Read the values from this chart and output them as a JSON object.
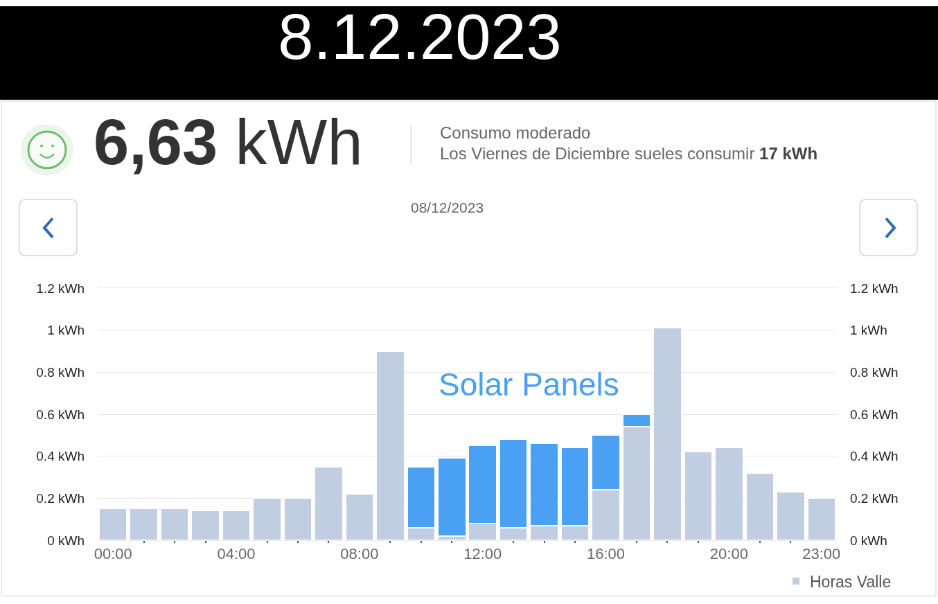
{
  "chart_data": {
    "type": "bar",
    "title": "8.12.2023",
    "annotations": [
      "6,63 kWh",
      "Consumo moderado",
      "Los Viernes de Diciembre sueles consumir 17 kWh",
      "08/12/2023"
    ],
    "categories": [
      "00:00",
      null,
      null,
      null,
      "04:00",
      null,
      null,
      null,
      "08:00",
      null,
      null,
      null,
      "12:00",
      null,
      null,
      null,
      "16:00",
      null,
      null,
      null,
      "20:00",
      null,
      null,
      "23:00"
    ],
    "series": [
      {
        "name": "Horas Valle",
        "color": "#c1cde0",
        "values": [
          0.15,
          0.15,
          0.15,
          0.14,
          0.14,
          0.2,
          0.2,
          0.35,
          0.22,
          0.9,
          0.06,
          0.02,
          0.08,
          0.06,
          0.07,
          0.07,
          0.24,
          0.54,
          1.01,
          0.42,
          0.44,
          0.32,
          0.23,
          0.2
        ]
      },
      {
        "name": "Solar Panels",
        "color": "#4aa0f3",
        "values": [
          null,
          null,
          null,
          null,
          null,
          null,
          null,
          null,
          null,
          null,
          0.29,
          0.37,
          0.37,
          0.42,
          0.39,
          0.37,
          0.26,
          0.06,
          null,
          null,
          null,
          null,
          null,
          null
        ]
      }
    ],
    "stacked": true,
    "ylim": [
      0,
      1.2
    ],
    "yticks": [
      {
        "value": 0,
        "label": "0 kWh"
      },
      {
        "value": 0.2,
        "label": "0.2 kWh"
      },
      {
        "value": 0.4,
        "label": "0.4 kWh"
      },
      {
        "value": 0.6,
        "label": "0.6 kWh"
      },
      {
        "value": 0.8,
        "label": "0.8 kWh"
      },
      {
        "value": 1,
        "label": "1 kWh"
      },
      {
        "value": 1.2,
        "label": "1.2 kWh"
      }
    ],
    "y2lim": [
      0,
      1.2
    ],
    "y2ticks": [
      {
        "value": 0,
        "label": "0 kWh"
      },
      {
        "value": 0.2,
        "label": "0.2 kWh"
      },
      {
        "value": 0.4,
        "label": "0.4 kWh"
      },
      {
        "value": 0.6,
        "label": "0.6 kWh"
      },
      {
        "value": 0.8,
        "label": "0.8 kWh"
      },
      {
        "value": 1,
        "label": "1 kWh"
      },
      {
        "value": 1.2,
        "label": "1.2 kWh"
      }
    ],
    "grid": "y",
    "legend": "bottom right"
  }
}
